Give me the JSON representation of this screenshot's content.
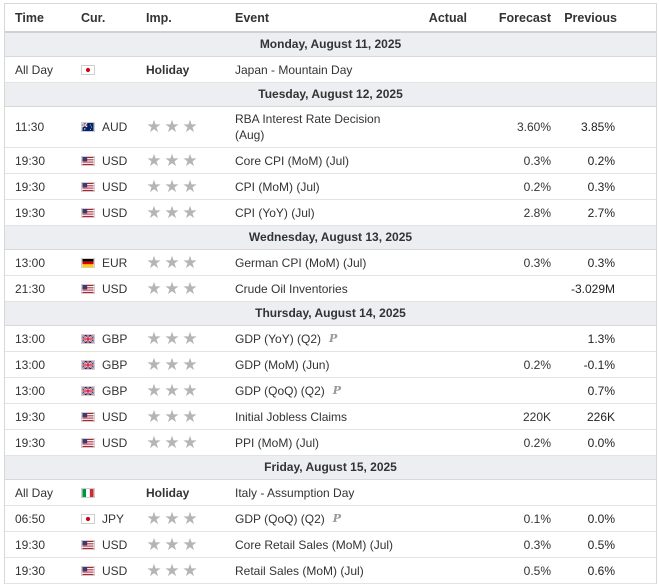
{
  "header": {
    "time": "Time",
    "currency": "Cur.",
    "importance": "Imp.",
    "event": "Event",
    "actual": "Actual",
    "forecast": "Forecast",
    "previous": "Previous"
  },
  "days": [
    {
      "label": "Monday, August 11, 2025",
      "rows": [
        {
          "time": "All Day",
          "flag": "JP",
          "currency": "",
          "holiday": "Holiday",
          "event": "Japan - Mountain Day",
          "actual": "",
          "forecast": "",
          "previous": "",
          "prelim": false
        }
      ]
    },
    {
      "label": "Tuesday, August 12, 2025",
      "rows": [
        {
          "time": "11:30",
          "flag": "AU",
          "currency": "AUD",
          "stars": 3,
          "event": "RBA Interest Rate Decision (Aug)",
          "actual": "",
          "forecast": "3.60%",
          "previous": "3.85%",
          "prelim": false,
          "tall": true
        },
        {
          "time": "19:30",
          "flag": "US",
          "currency": "USD",
          "stars": 3,
          "event": "Core CPI (MoM) (Jul)",
          "actual": "",
          "forecast": "0.3%",
          "previous": "0.2%",
          "prelim": false
        },
        {
          "time": "19:30",
          "flag": "US",
          "currency": "USD",
          "stars": 3,
          "event": "CPI (MoM) (Jul)",
          "actual": "",
          "forecast": "0.2%",
          "previous": "0.3%",
          "prelim": false
        },
        {
          "time": "19:30",
          "flag": "US",
          "currency": "USD",
          "stars": 3,
          "event": "CPI (YoY) (Jul)",
          "actual": "",
          "forecast": "2.8%",
          "previous": "2.7%",
          "prelim": false
        }
      ]
    },
    {
      "label": "Wednesday, August 13, 2025",
      "rows": [
        {
          "time": "13:00",
          "flag": "DE",
          "currency": "EUR",
          "stars": 3,
          "event": "German CPI (MoM) (Jul)",
          "actual": "",
          "forecast": "0.3%",
          "previous": "0.3%",
          "prelim": false
        },
        {
          "time": "21:30",
          "flag": "US",
          "currency": "USD",
          "stars": 3,
          "event": "Crude Oil Inventories",
          "actual": "",
          "forecast": "",
          "previous": "-3.029M",
          "prelim": false
        }
      ]
    },
    {
      "label": "Thursday, August 14, 2025",
      "rows": [
        {
          "time": "13:00",
          "flag": "GB",
          "currency": "GBP",
          "stars": 3,
          "event": "GDP (YoY) (Q2)",
          "actual": "",
          "forecast": "",
          "previous": "1.3%",
          "prelim": true
        },
        {
          "time": "13:00",
          "flag": "GB",
          "currency": "GBP",
          "stars": 3,
          "event": "GDP (MoM) (Jun)",
          "actual": "",
          "forecast": "0.2%",
          "previous": "-0.1%",
          "prelim": false
        },
        {
          "time": "13:00",
          "flag": "GB",
          "currency": "GBP",
          "stars": 3,
          "event": "GDP (QoQ) (Q2)",
          "actual": "",
          "forecast": "",
          "previous": "0.7%",
          "prelim": true
        },
        {
          "time": "19:30",
          "flag": "US",
          "currency": "USD",
          "stars": 3,
          "event": "Initial Jobless Claims",
          "actual": "",
          "forecast": "220K",
          "previous": "226K",
          "prelim": false
        },
        {
          "time": "19:30",
          "flag": "US",
          "currency": "USD",
          "stars": 3,
          "event": "PPI (MoM) (Jul)",
          "actual": "",
          "forecast": "0.2%",
          "previous": "0.0%",
          "prelim": false
        }
      ]
    },
    {
      "label": "Friday, August 15, 2025",
      "rows": [
        {
          "time": "All Day",
          "flag": "IT",
          "currency": "",
          "holiday": "Holiday",
          "event": "Italy - Assumption Day",
          "actual": "",
          "forecast": "",
          "previous": "",
          "prelim": false
        },
        {
          "time": "06:50",
          "flag": "JP",
          "currency": "JPY",
          "stars": 3,
          "event": "GDP (QoQ) (Q2)",
          "actual": "",
          "forecast": "0.1%",
          "previous": "0.0%",
          "prelim": true
        },
        {
          "time": "19:30",
          "flag": "US",
          "currency": "USD",
          "stars": 3,
          "event": "Core Retail Sales (MoM) (Jul)",
          "actual": "",
          "forecast": "0.3%",
          "previous": "0.5%",
          "prelim": false
        },
        {
          "time": "19:30",
          "flag": "US",
          "currency": "USD",
          "stars": 3,
          "event": "Retail Sales (MoM) (Jul)",
          "actual": "",
          "forecast": "0.5%",
          "previous": "0.6%",
          "prelim": false
        }
      ]
    }
  ],
  "prelim_mark": "P",
  "star_icon": "star-icon",
  "colors": {
    "day_band": "#eceef1",
    "star": "#b5b5b5",
    "border": "#d8d8d8"
  }
}
